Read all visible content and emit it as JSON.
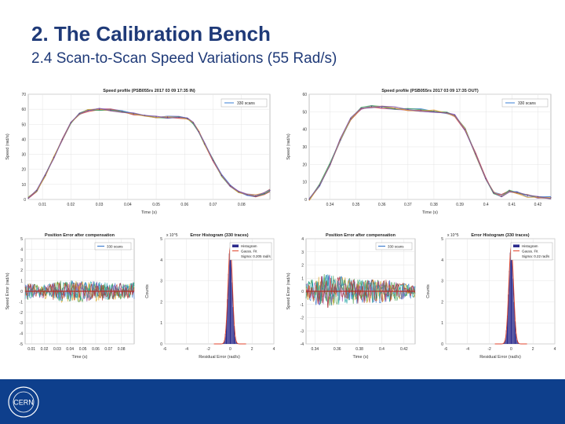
{
  "slide": {
    "title": "2. The Calibration Bench",
    "subtitle": "2.4 Scan-to-Scan Speed Variations (55 Rad/s)"
  },
  "logo": {
    "text": "CERN",
    "icon": "cern-logo-icon"
  },
  "colors": {
    "title": "#1f3a78",
    "footer": "#0e3f8c",
    "speed_band": "#7a4fa8",
    "error_band": "#c0392b",
    "histogram": "#2b2b8c",
    "gauss": "#e0452c"
  },
  "chart_data": [
    {
      "id": "speed-in",
      "type": "line",
      "title": "Speed profile (PSB055rs 2017 03 09 17:35 IN)",
      "xlabel": "Time (s)",
      "ylabel": "Speed (rad/s)",
      "xlim": [
        0.005,
        0.09
      ],
      "ylim": [
        0,
        70
      ],
      "xticks": [
        0.01,
        0.02,
        0.03,
        0.04,
        0.05,
        0.06,
        0.07,
        0.08
      ],
      "xtick_labels": [
        "0.01",
        "0.02",
        "0.03",
        "0.04",
        "0.05",
        "0.06",
        "0.07",
        "0.08"
      ],
      "yticks": [
        0,
        10,
        20,
        30,
        40,
        50,
        60,
        70
      ],
      "legend": "330 scans",
      "legend_position": "top-right",
      "grid": true,
      "x": [
        0.005,
        0.008,
        0.011,
        0.014,
        0.017,
        0.02,
        0.023,
        0.026,
        0.03,
        0.034,
        0.038,
        0.042,
        0.046,
        0.05,
        0.054,
        0.058,
        0.061,
        0.063,
        0.065,
        0.067,
        0.07,
        0.073,
        0.076,
        0.079,
        0.082,
        0.085,
        0.088,
        0.09
      ],
      "values": [
        1,
        6,
        16,
        28,
        40,
        51,
        57,
        59,
        60,
        59.5,
        58.5,
        57,
        56,
        55,
        54.8,
        54.5,
        53.5,
        51,
        45,
        37,
        26,
        16,
        9,
        5,
        3,
        2.5,
        4,
        6
      ]
    },
    {
      "id": "speed-out",
      "type": "line",
      "title": "Speed profile (PSB055rs 2017 03 09 17:35 OUT)",
      "xlabel": "Time (s)",
      "ylabel": "Speed (rad/s)",
      "xlim": [
        0.332,
        0.425
      ],
      "ylim": [
        0,
        60
      ],
      "xticks": [
        0.34,
        0.35,
        0.36,
        0.37,
        0.38,
        0.39,
        0.4,
        0.41,
        0.42
      ],
      "xtick_labels": [
        "0.34",
        "0.35",
        "0.36",
        "0.37",
        "0.38",
        "0.39",
        "0.4",
        "0.41",
        "0.42"
      ],
      "yticks": [
        0,
        10,
        20,
        30,
        40,
        50,
        60
      ],
      "legend": "330 scans",
      "legend_position": "top-right",
      "grid": true,
      "x": [
        0.332,
        0.336,
        0.34,
        0.344,
        0.348,
        0.352,
        0.356,
        0.36,
        0.365,
        0.37,
        0.375,
        0.38,
        0.385,
        0.388,
        0.392,
        0.396,
        0.4,
        0.403,
        0.406,
        0.409,
        0.412,
        0.416,
        0.42,
        0.425
      ],
      "values": [
        0,
        8,
        20,
        34,
        46,
        52,
        53,
        52.5,
        52,
        51.5,
        51,
        50.5,
        49.5,
        48,
        40,
        26,
        12,
        4,
        2,
        5,
        4,
        2,
        1.5,
        1
      ]
    },
    {
      "id": "position-error-in",
      "type": "line",
      "title": "Position Error after compensation",
      "xlabel": "Time (s)",
      "ylabel": "Speed Error (rad/s)",
      "xlim": [
        0.005,
        0.09
      ],
      "ylim": [
        -5,
        5
      ],
      "xticks": [
        0.01,
        0.02,
        0.03,
        0.04,
        0.05,
        0.06,
        0.07,
        0.08
      ],
      "xtick_labels": [
        "0.01",
        "0.02",
        "0.03",
        "0.04",
        "0.05",
        "0.06",
        "0.07",
        "0.08"
      ],
      "yticks": [
        -5,
        -4,
        -3,
        -2,
        -1,
        0,
        1,
        2,
        3,
        4,
        5
      ],
      "legend": "330 scans",
      "legend_position": "top-right",
      "grid": true,
      "x": [
        0.005,
        0.015,
        0.025,
        0.035,
        0.045,
        0.055,
        0.065,
        0.075,
        0.085,
        0.09
      ],
      "upper": [
        0.9,
        0.6,
        0.8,
        1.1,
        1.0,
        1.0,
        0.9,
        0.8,
        0.7,
        0.9
      ],
      "lower": [
        -0.9,
        -0.6,
        -0.8,
        -1.1,
        -1.0,
        -1.0,
        -0.9,
        -0.8,
        -0.7,
        -0.9
      ]
    },
    {
      "id": "error-histogram-in",
      "type": "bar",
      "title": "Error Histogram (330 traces)",
      "xlabel": "Residual Error (rad/s)",
      "ylabel": "Counts",
      "exponent": "x 10^5",
      "xlim": [
        -6,
        4
      ],
      "ylim": [
        0,
        5
      ],
      "xticks": [
        -6,
        -4,
        -2,
        0,
        2,
        4
      ],
      "xtick_labels": [
        "-6",
        "-4",
        "-2",
        "0",
        "2",
        "4"
      ],
      "yticks": [
        0,
        1,
        2,
        3,
        4,
        5
      ],
      "legend": [
        "Histogram",
        "Gauss. Fit",
        "Sigma: 0.205 rad/s"
      ],
      "legend_position": "top-right",
      "grid": true,
      "mean": 0,
      "sigma": 0.205,
      "peak": 4.6
    },
    {
      "id": "position-error-out",
      "type": "line",
      "title": "Position Error after compensation",
      "xlabel": "Time (s)",
      "ylabel": "Speed Error (rad/s)",
      "xlim": [
        0.332,
        0.43
      ],
      "ylim": [
        -4,
        4
      ],
      "xticks": [
        0.34,
        0.36,
        0.38,
        0.4,
        0.42
      ],
      "xtick_labels": [
        "0.34",
        "0.36",
        "0.38",
        "0.4",
        "0.42"
      ],
      "yticks": [
        -4,
        -3,
        -2,
        -1,
        0,
        1,
        2,
        3,
        4
      ],
      "legend": "330 scans",
      "legend_position": "top-right",
      "grid": true,
      "x": [
        0.332,
        0.342,
        0.352,
        0.362,
        0.372,
        0.382,
        0.392,
        0.402,
        0.412,
        0.422,
        0.43
      ],
      "upper": [
        0.6,
        1.2,
        1.4,
        1.2,
        1.0,
        0.9,
        0.9,
        0.9,
        0.8,
        0.6,
        0.5
      ],
      "lower": [
        -0.6,
        -1.2,
        -1.4,
        -1.2,
        -1.0,
        -0.9,
        -0.9,
        -0.9,
        -0.8,
        -0.6,
        -0.5
      ]
    },
    {
      "id": "error-histogram-out",
      "type": "bar",
      "title": "Error Histogram (330 traces)",
      "xlabel": "Residual Error (rad/s)",
      "ylabel": "Counts",
      "exponent": "x 10^5",
      "xlim": [
        -6,
        4
      ],
      "ylim": [
        0,
        5
      ],
      "xticks": [
        -6,
        -4,
        -2,
        0,
        2,
        4
      ],
      "xtick_labels": [
        "-6",
        "-4",
        "-2",
        "0",
        "2",
        "4"
      ],
      "yticks": [
        0,
        1,
        2,
        3,
        4,
        5
      ],
      "legend": [
        "Histogram",
        "Gauss. Fit",
        "Sigma: 0.22 rad/s"
      ],
      "legend_position": "top-right",
      "grid": true,
      "mean": 0,
      "sigma": 0.22,
      "peak": 4.6
    }
  ]
}
